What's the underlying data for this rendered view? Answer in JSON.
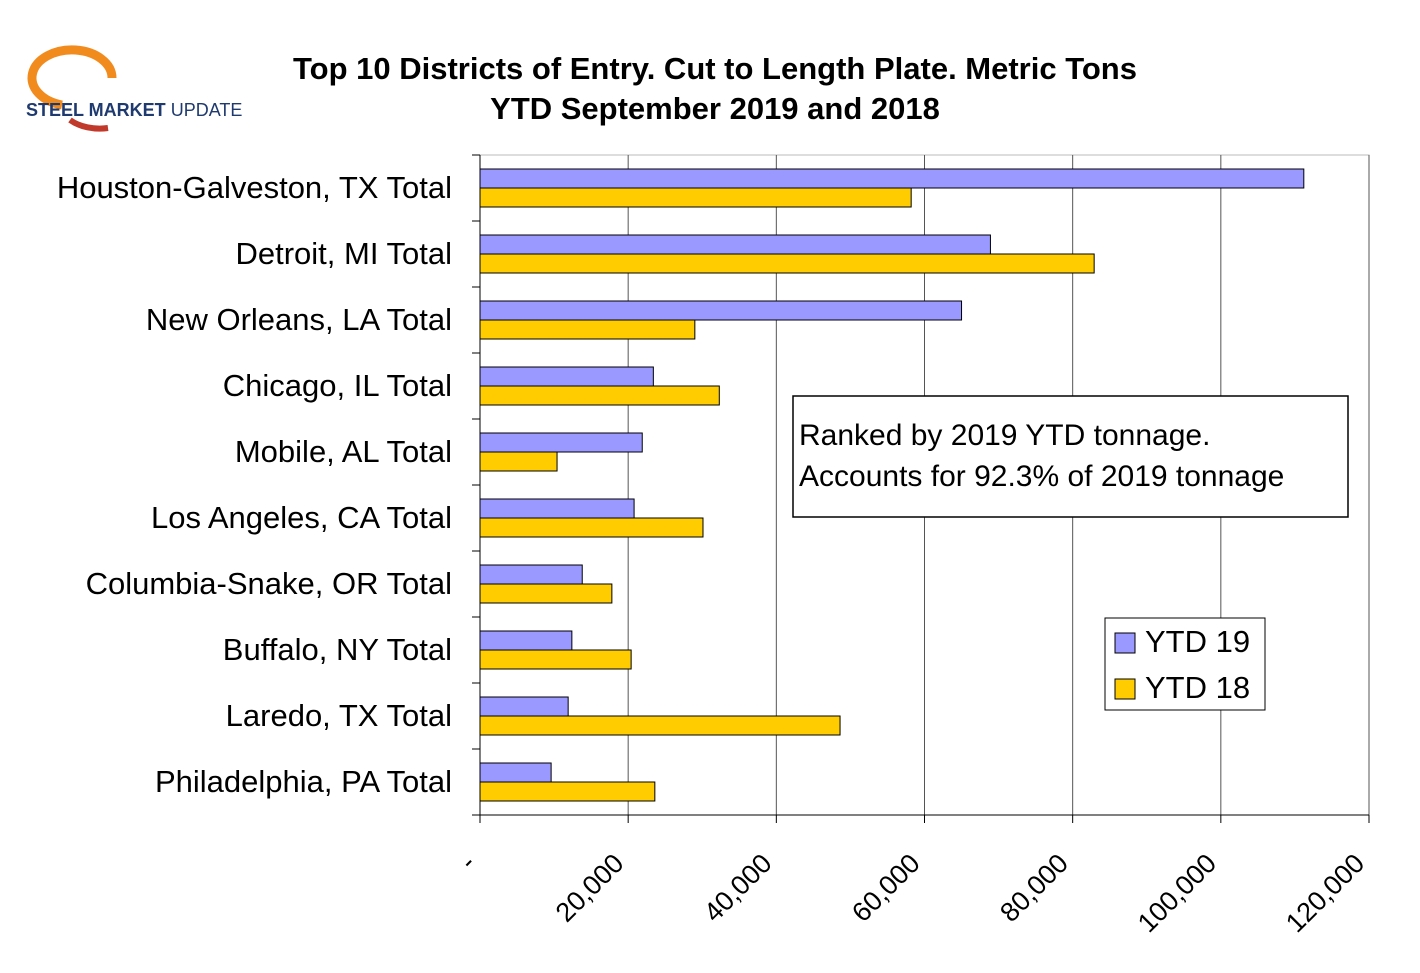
{
  "logo": {
    "bold": "STEEL MARKET",
    "regular": "UPDATE"
  },
  "chart_data": {
    "type": "hbar",
    "title": "Top 10 Districts of Entry. Cut to Length Plate. Metric Tons",
    "subtitle": "YTD September 2019 and 2018",
    "categories": [
      "Houston-Galveston, TX Total",
      "Detroit, MI Total",
      "New Orleans, LA Total",
      "Chicago, IL Total",
      "Mobile, AL Total",
      "Los Angeles, CA Total",
      "Columbia-Snake, OR Total",
      "Buffalo, NY Total",
      "Laredo, TX Total",
      "Philadelphia, PA Total"
    ],
    "series": [
      {
        "name": "YTD 19",
        "color": "#9999ff",
        "values": [
          111200,
          68900,
          65000,
          23400,
          21900,
          20800,
          13800,
          12400,
          11900,
          9600
        ]
      },
      {
        "name": "YTD 18",
        "color": "#ffcc00",
        "values": [
          58200,
          82900,
          29000,
          32300,
          10400,
          30100,
          17800,
          20400,
          48600,
          23600
        ]
      }
    ],
    "xlim": [
      0,
      120000
    ],
    "xticks": [
      {
        "value": 0,
        "label": "-"
      },
      {
        "value": 20000,
        "label": "20,000"
      },
      {
        "value": 40000,
        "label": "40,000"
      },
      {
        "value": 60000,
        "label": "60,000"
      },
      {
        "value": 80000,
        "label": "80,000"
      },
      {
        "value": 100000,
        "label": "100,000"
      },
      {
        "value": 120000,
        "label": "120,000"
      }
    ],
    "grid": true,
    "annotations": [
      "Ranked by 2019  YTD tonnage.",
      "Accounts for 92.3% of 2019 tonnage"
    ]
  }
}
